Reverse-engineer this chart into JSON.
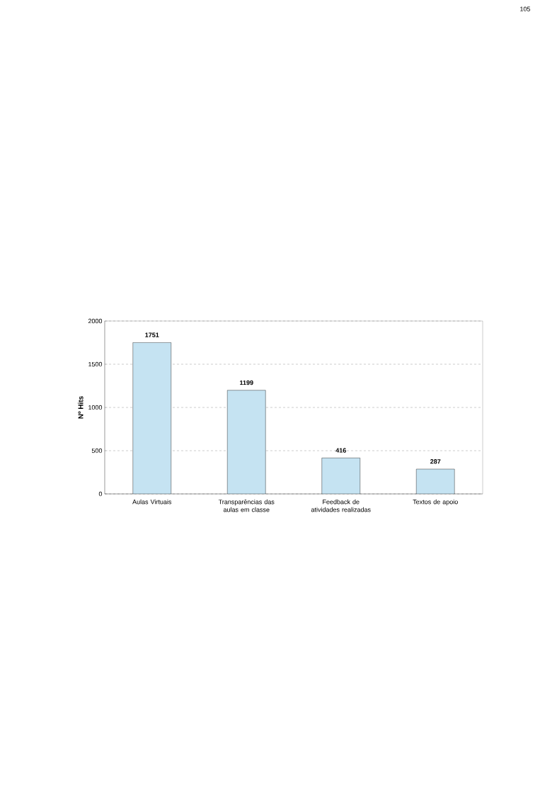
{
  "chart_data": {
    "type": "bar",
    "ylabel": "Nº Hits",
    "categories": [
      "Aulas Virtuais",
      "Transparências das aulas em classe",
      "Feedback de atividades realizadas",
      "Textos de apoio"
    ],
    "values": [
      1751,
      1199,
      416,
      287
    ],
    "color": "#c5e3f2",
    "ylim": [
      0,
      2000
    ],
    "yticks": [
      0,
      500,
      1000,
      1500,
      2000
    ],
    "grid": "y",
    "data_labels": true,
    "annotations": [
      "105"
    ]
  }
}
